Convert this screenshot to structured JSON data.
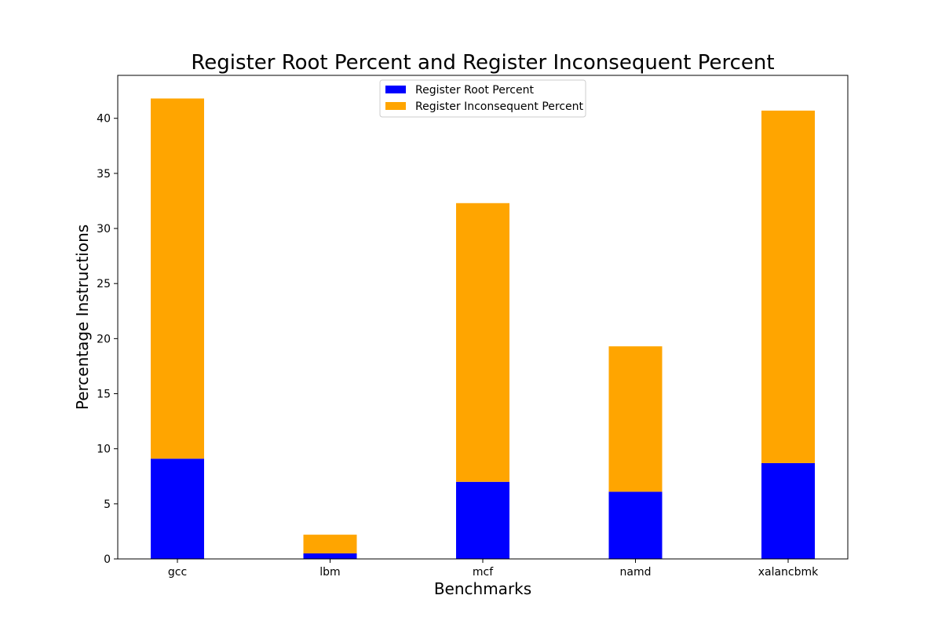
{
  "chart_data": {
    "type": "bar",
    "stacked": true,
    "title": "Register Root Percent and Register Inconsequent Percent",
    "xlabel": "Benchmarks",
    "ylabel": "Percentage Instructions",
    "categories": [
      "gcc",
      "lbm",
      "mcf",
      "namd",
      "xalancbmk"
    ],
    "series": [
      {
        "name": "Register Root Percent",
        "color": "#0000ff",
        "values": [
          9.1,
          0.5,
          7.0,
          6.1,
          8.7
        ]
      },
      {
        "name": "Register Inconsequent Percent",
        "color": "#ffa500",
        "values": [
          32.7,
          1.7,
          25.3,
          13.2,
          32.0
        ]
      }
    ],
    "ylim": [
      0,
      43.9
    ],
    "yticks": [
      0,
      5,
      10,
      15,
      20,
      25,
      30,
      35,
      40
    ],
    "grid": false,
    "legend_position": "top-center"
  }
}
